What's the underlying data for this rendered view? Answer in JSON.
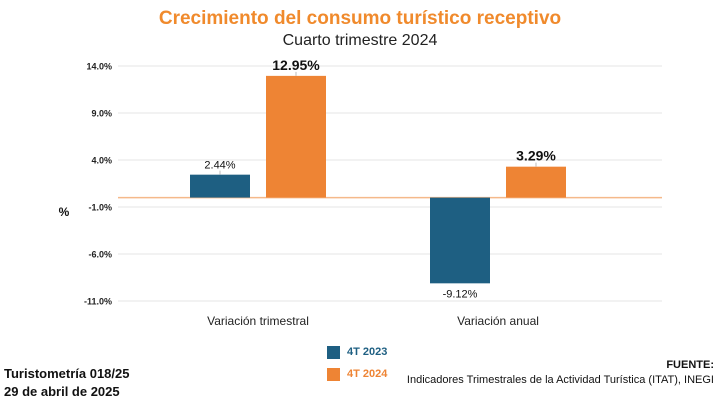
{
  "header": {
    "title": "Crecimiento del consumo turístico receptivo",
    "subtitle": "Cuarto trimestre 2024"
  },
  "chart_data": {
    "type": "bar",
    "categories": [
      "Variación trimestral",
      "Variación anual"
    ],
    "series": [
      {
        "name": "4T 2023",
        "color": "#1e5f82",
        "values": [
          2.44,
          -9.12
        ],
        "labels": [
          "2.44%",
          "-9.12%"
        ]
      },
      {
        "name": "4T 2024",
        "color": "#ee8434",
        "values": [
          12.95,
          3.29
        ],
        "labels": [
          "12.95%",
          "3.29%"
        ]
      }
    ],
    "ylabel": "%",
    "ylim": [
      -11.0,
      14.0
    ],
    "yticks": [
      14.0,
      9.0,
      4.0,
      -1.0,
      -6.0,
      -11.0
    ],
    "ytick_labels": [
      "14.0%",
      "9.0%",
      "4.0%",
      "-1.0%",
      "-6.0%",
      "-11.0%"
    ],
    "zero_line_color": "#f5b98a",
    "grid": true
  },
  "footer": {
    "report": "Turistometría 018/25",
    "date": "29 de abril de 2025",
    "source_label": "FUENTE:",
    "source_text": "Indicadores Trimestrales de la Actividad Turística (ITAT), INEGI"
  }
}
